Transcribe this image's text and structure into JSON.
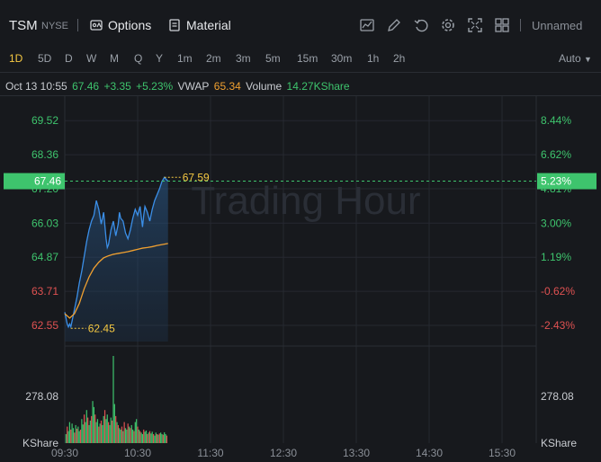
{
  "header": {
    "symbol": "TSM",
    "exchange": "NYSE",
    "options_label": "Options",
    "material_label": "Material",
    "layout_name": "Unnamed"
  },
  "timeframes": [
    "1D",
    "5D",
    "D",
    "W",
    "M",
    "Q",
    "Y",
    "1m",
    "2m",
    "3m",
    "5m",
    "15m",
    "30m",
    "1h",
    "2h"
  ],
  "active_timeframe": "1D",
  "scale_mode": "Auto",
  "info": {
    "datetime": "Oct 13 10:55",
    "price": "67.46",
    "change": "+3.35",
    "change_pct": "+5.23%",
    "vwap_label": "VWAP",
    "vwap_value": "65.34",
    "volume_label": "Volume",
    "volume_value": "14.27KShare"
  },
  "watermark": "Trading Hour",
  "colors": {
    "up": "#3ec46d",
    "down": "#e05252",
    "price_line": "#3b8fe8",
    "vwap_line": "#f0a030",
    "label_yellow": "#f5c842"
  },
  "chart_data": {
    "type": "line",
    "price_axis_left": [
      "69.52",
      "68.36",
      "67.20",
      "66.03",
      "64.87",
      "63.71",
      "62.55"
    ],
    "price_axis_right": [
      "8.44%",
      "6.62%",
      "4.81%",
      "3.00%",
      "1.19%",
      "-0.62%",
      "-2.43%"
    ],
    "ylim": [
      62.0,
      70.2
    ],
    "current_price_label": "67.46",
    "current_pct_label": "5.23%",
    "high_label": "67.59",
    "low_label": "62.45",
    "volume_axis_left": "278.08",
    "volume_axis_right": "278.08",
    "volume_unit_left": "KShare",
    "volume_unit_right": "KShare",
    "x_ticks": [
      "09:30",
      "10:30",
      "11:30",
      "12:30",
      "13:30",
      "14:30",
      "15:30"
    ],
    "x_minutes": [
      0,
      60,
      120,
      180,
      240,
      300,
      360
    ],
    "price_series": {
      "name": "Price",
      "minutes": [
        0,
        1,
        2,
        3,
        4,
        5,
        6,
        7,
        8,
        9,
        10,
        12,
        14,
        16,
        18,
        20,
        22,
        24,
        26,
        28,
        30,
        32,
        34,
        35,
        36,
        38,
        40,
        42,
        44,
        45,
        46,
        48,
        50,
        52,
        54,
        55,
        56,
        58,
        60,
        62,
        64,
        65,
        66,
        68,
        70,
        72,
        74,
        76,
        78,
        80,
        82,
        84,
        85
      ],
      "values": [
        63.0,
        62.8,
        62.6,
        62.5,
        62.6,
        62.5,
        62.7,
        62.9,
        63.1,
        63.3,
        63.5,
        64.0,
        64.4,
        64.9,
        65.4,
        65.8,
        66.1,
        66.3,
        66.8,
        66.5,
        66.0,
        66.4,
        65.5,
        65.2,
        65.3,
        65.8,
        66.1,
        65.6,
        66.0,
        66.4,
        66.2,
        66.1,
        65.7,
        65.5,
        65.8,
        66.0,
        66.2,
        66.5,
        66.3,
        66.6,
        65.9,
        66.3,
        66.6,
        66.4,
        66.1,
        66.5,
        66.8,
        67.0,
        67.2,
        67.45,
        67.59,
        67.5,
        67.46
      ]
    },
    "vwap_series": {
      "name": "VWAP",
      "minutes": [
        0,
        4,
        8,
        12,
        16,
        20,
        24,
        28,
        32,
        36,
        40,
        44,
        48,
        52,
        56,
        60,
        64,
        68,
        72,
        76,
        80,
        85
      ],
      "values": [
        62.95,
        62.8,
        62.95,
        63.3,
        63.8,
        64.2,
        64.5,
        64.7,
        64.85,
        64.92,
        64.97,
        65.0,
        65.03,
        65.06,
        65.1,
        65.14,
        65.18,
        65.2,
        65.23,
        65.27,
        65.3,
        65.34
      ]
    },
    "volume_series": {
      "name": "Volume",
      "minutes": [
        1,
        2,
        3,
        4,
        5,
        6,
        7,
        8,
        9,
        10,
        11,
        12,
        13,
        14,
        15,
        16,
        17,
        18,
        19,
        20,
        21,
        22,
        23,
        24,
        25,
        26,
        27,
        28,
        29,
        30,
        31,
        32,
        33,
        34,
        35,
        36,
        37,
        38,
        39,
        40,
        41,
        42,
        43,
        44,
        45,
        46,
        47,
        48,
        49,
        50,
        51,
        52,
        53,
        54,
        55,
        56,
        57,
        58,
        59,
        60,
        61,
        62,
        63,
        64,
        65,
        66,
        67,
        68,
        69,
        70,
        71,
        72,
        73,
        74,
        75,
        76,
        77,
        78,
        79,
        80,
        81,
        82,
        83,
        84
      ],
      "values": [
        30,
        55,
        40,
        70,
        45,
        65,
        50,
        35,
        60,
        48,
        55,
        40,
        45,
        80,
        62,
        95,
        70,
        110,
        85,
        60,
        75,
        90,
        140,
        120,
        95,
        70,
        80,
        55,
        65,
        75,
        60,
        90,
        110,
        80,
        95,
        70,
        60,
        85,
        75,
        290,
        130,
        90,
        70,
        60,
        50,
        45,
        55,
        40,
        70,
        50,
        45,
        65,
        55,
        50,
        60,
        45,
        40,
        70,
        80,
        55,
        45,
        40,
        35,
        30,
        45,
        38,
        42,
        30,
        35,
        40,
        32,
        38,
        30,
        25,
        35,
        30,
        28,
        32,
        35,
        30,
        28,
        36,
        30,
        25
      ],
      "up": [
        1,
        0,
        1,
        1,
        0,
        1,
        1,
        0,
        1,
        0,
        1,
        1,
        0,
        1,
        1,
        0,
        1,
        1,
        0,
        1,
        1,
        0,
        1,
        1,
        0,
        1,
        1,
        0,
        1,
        0,
        1,
        1,
        0,
        1,
        1,
        0,
        1,
        1,
        0,
        1,
        1,
        0,
        1,
        0,
        1,
        1,
        0,
        1,
        0,
        1,
        1,
        0,
        1,
        0,
        1,
        1,
        0,
        1,
        1,
        0,
        1,
        0,
        1,
        1,
        0,
        1,
        1,
        0,
        1,
        0,
        1,
        1,
        0,
        1,
        1,
        0,
        1,
        0,
        1,
        1,
        0,
        1,
        1,
        0
      ]
    }
  }
}
